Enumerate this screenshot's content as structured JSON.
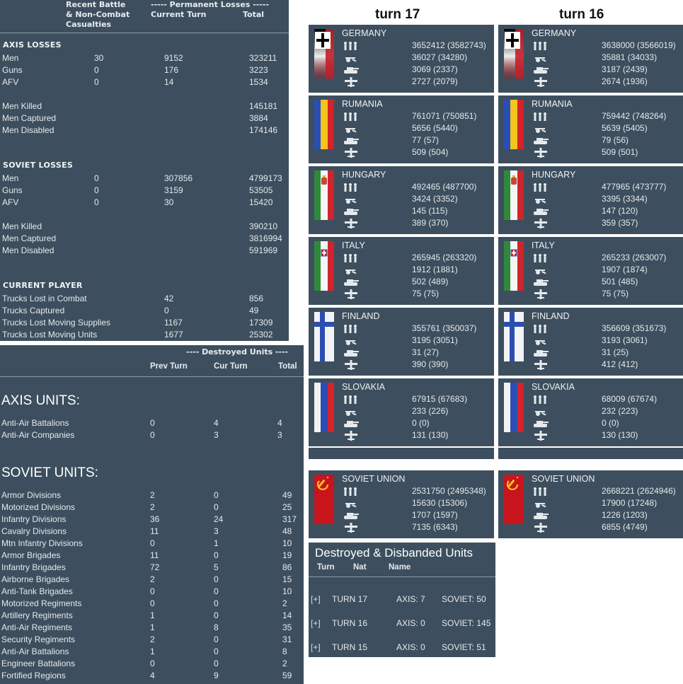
{
  "losses": {
    "header": {
      "col1": "Recent Battle",
      "col1b": "& Non-Combat",
      "col1c": "Casualties",
      "perm": "----- Permanent Losses -----",
      "current": "Current Turn",
      "total": "Total"
    },
    "axis_title": "AXIS LOSSES",
    "axis_rows": [
      {
        "label": "Men",
        "recent": "30",
        "current": "9152",
        "total": "323211"
      },
      {
        "label": "Guns",
        "recent": "0",
        "current": "176",
        "total": "3223"
      },
      {
        "label": "AFV",
        "recent": "0",
        "current": "14",
        "total": "1534"
      }
    ],
    "axis_men": [
      {
        "label": "Men Killed",
        "total": "145181"
      },
      {
        "label": "Men Captured",
        "total": "3884"
      },
      {
        "label": "Men Disabled",
        "total": "174146"
      }
    ],
    "soviet_title": "SOVIET LOSSES",
    "soviet_rows": [
      {
        "label": "Men",
        "recent": "0",
        "current": "307856",
        "total": "4799173"
      },
      {
        "label": "Guns",
        "recent": "0",
        "current": "3159",
        "total": "53505"
      },
      {
        "label": "AFV",
        "recent": "0",
        "current": "30",
        "total": "15420"
      }
    ],
    "soviet_men": [
      {
        "label": "Men Killed",
        "total": "390210"
      },
      {
        "label": "Men Captured",
        "total": "3816994"
      },
      {
        "label": "Men Disabled",
        "total": "591969"
      }
    ],
    "player_title": "CURRENT PLAYER",
    "player_rows": [
      {
        "label": "Trucks Lost in Combat",
        "current": "42",
        "total": "856"
      },
      {
        "label": "Trucks Captured",
        "current": "0",
        "total": "49"
      },
      {
        "label": "Trucks Lost Moving Supplies",
        "current": "1167",
        "total": "17309"
      },
      {
        "label": "Trucks Lost Moving Units",
        "current": "1677",
        "total": "25302"
      }
    ]
  },
  "destroyed": {
    "header": "---- Destroyed Units ----",
    "prev": "Prev Turn",
    "cur": "Cur Turn",
    "total": "Total",
    "axis_title": "AXIS UNITS:",
    "axis_rows": [
      {
        "label": "Anti-Air Battalions",
        "prev": "0",
        "cur": "4",
        "total": "4"
      },
      {
        "label": "Anti-Air Companies",
        "prev": "0",
        "cur": "3",
        "total": "3"
      }
    ],
    "soviet_title": "SOVIET UNITS:",
    "soviet_rows": [
      {
        "label": "Armor Divisions",
        "prev": "2",
        "cur": "0",
        "total": "49"
      },
      {
        "label": "Motorized Divisions",
        "prev": "2",
        "cur": "0",
        "total": "25"
      },
      {
        "label": "Infantry Divisions",
        "prev": "36",
        "cur": "24",
        "total": "317"
      },
      {
        "label": "Cavalry Divisions",
        "prev": "11",
        "cur": "3",
        "total": "48"
      },
      {
        "label": "Mtn Infantry Divisions",
        "prev": "0",
        "cur": "1",
        "total": "10"
      },
      {
        "label": "Armor Brigades",
        "prev": "11",
        "cur": "0",
        "total": "19"
      },
      {
        "label": "Infantry Brigades",
        "prev": "72",
        "cur": "5",
        "total": "86"
      },
      {
        "label": "Airborne Brigades",
        "prev": "2",
        "cur": "0",
        "total": "15"
      },
      {
        "label": "Anti-Tank Brigades",
        "prev": "0",
        "cur": "0",
        "total": "10"
      },
      {
        "label": "Motorized Regiments",
        "prev": "0",
        "cur": "0",
        "total": "2"
      },
      {
        "label": "Artillery Regiments",
        "prev": "1",
        "cur": "0",
        "total": "14"
      },
      {
        "label": "Anti-Air Regiments",
        "prev": "1",
        "cur": "8",
        "total": "35"
      },
      {
        "label": "Security Regiments",
        "prev": "2",
        "cur": "0",
        "total": "31"
      },
      {
        "label": "Anti-Air Battalions",
        "prev": "1",
        "cur": "0",
        "total": "8"
      },
      {
        "label": "Engineer Battalions",
        "prev": "0",
        "cur": "0",
        "total": "2"
      },
      {
        "label": "Fortified Regions",
        "prev": "4",
        "cur": "9",
        "total": "59"
      }
    ]
  },
  "turns": [
    {
      "title": "turn 17",
      "nations": [
        {
          "name": "GERMANY",
          "men": "3652412 (3582743)",
          "guns": "36027 (34280)",
          "afv": "3069 (2337)",
          "air": "2727 (2079)"
        },
        {
          "name": "RUMANIA",
          "men": "761071 (750851)",
          "guns": "5656 (5440)",
          "afv": "77 (57)",
          "air": "509 (504)"
        },
        {
          "name": "HUNGARY",
          "men": "492465 (487700)",
          "guns": "3424 (3352)",
          "afv": "145 (115)",
          "air": "389 (370)"
        },
        {
          "name": "ITALY",
          "men": "265945 (263320)",
          "guns": "1912 (1881)",
          "afv": "502 (489)",
          "air": "75 (75)"
        },
        {
          "name": "FINLAND",
          "men": "355761 (350037)",
          "guns": "3195 (3051)",
          "afv": "31 (27)",
          "air": "390 (390)"
        },
        {
          "name": "SLOVAKIA",
          "men": "67915 (67683)",
          "guns": "233 (226)",
          "afv": "0 (0)",
          "air": "131 (130)"
        },
        {
          "name": "SOVIET UNION",
          "men": "2531750 (2495348)",
          "guns": "15630 (15306)",
          "afv": "1707 (1597)",
          "air": "7135 (6343)"
        }
      ]
    },
    {
      "title": "turn 16",
      "nations": [
        {
          "name": "GERMANY",
          "men": "3638000 (3566019)",
          "guns": "35881 (34033)",
          "afv": "3187 (2439)",
          "air": "2674 (1936)"
        },
        {
          "name": "RUMANIA",
          "men": "759442 (748264)",
          "guns": "5639 (5405)",
          "afv": "79 (56)",
          "air": "509 (501)"
        },
        {
          "name": "HUNGARY",
          "men": "477965 (473777)",
          "guns": "3395 (3344)",
          "afv": "147 (120)",
          "air": "359 (357)"
        },
        {
          "name": "ITALY",
          "men": "265233 (263007)",
          "guns": "1907 (1874)",
          "afv": "501 (485)",
          "air": "75 (75)"
        },
        {
          "name": "FINLAND",
          "men": "356609 (351673)",
          "guns": "3193 (3061)",
          "afv": "31 (25)",
          "air": "412 (412)"
        },
        {
          "name": "SLOVAKIA",
          "men": "68009 (67674)",
          "guns": "232 (223)",
          "afv": "0 (0)",
          "air": "130 (130)"
        },
        {
          "name": "SOVIET UNION",
          "men": "2668221 (2624946)",
          "guns": "17900 (17248)",
          "afv": "1226 (1203)",
          "air": "6855 (4749)"
        }
      ]
    }
  ],
  "disbanded": {
    "title": "Destroyed & Disbanded Units",
    "col_turn": "Turn",
    "col_nat": "Nat",
    "col_name": "Name",
    "rows": [
      {
        "expand": "[+]",
        "turn": "TURN 17",
        "axis": "AXIS: 7",
        "soviet": "SOVIET: 50"
      },
      {
        "expand": "[+]",
        "turn": "TURN 16",
        "axis": "AXIS: 0",
        "soviet": "SOVIET: 145"
      },
      {
        "expand": "[+]",
        "turn": "TURN 15",
        "axis": "AXIS: 0",
        "soviet": "SOVIET: 51"
      }
    ]
  },
  "colors": {
    "panel": "#3d4f5e",
    "text": "#e6e9ec"
  }
}
